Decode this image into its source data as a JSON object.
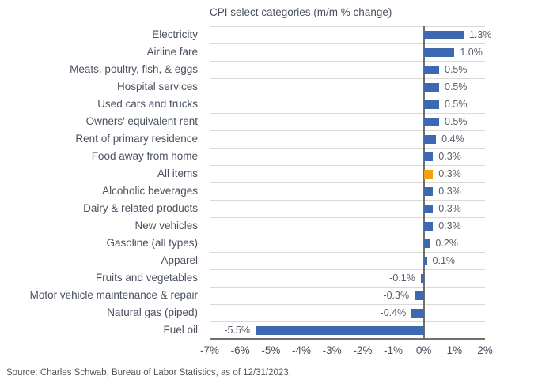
{
  "title": "CPI select categories (m/m % change)",
  "source": "Source: Charles Schwab, Bureau of Labor Statistics, as of 12/31/2023.",
  "colors": {
    "bar": "#3e69b1",
    "highlight_bar": "#f0a30c",
    "gridline": "#d9d9d9",
    "axis": "#707070",
    "title_text": "#4a5260",
    "label_text": "#4a5260",
    "value_text": "#57606c"
  },
  "chart_data": {
    "type": "bar",
    "orientation": "horizontal",
    "title": "CPI select categories (m/m % change)",
    "categories": [
      "Electricity",
      "Airline fare",
      "Meats, poultry, fish, & eggs",
      "Hospital services",
      "Used cars and trucks",
      "Owners' equivalent rent",
      "Rent of primary residence",
      "Food away from home",
      "All items",
      "Alcoholic beverages",
      "Dairy & related products",
      "New vehicles",
      "Gasoline (all types)",
      "Apparel",
      "Fruits and vegetables",
      "Motor vehicle maintenance & repair",
      "Natural gas (piped)",
      "Fuel oil"
    ],
    "values": [
      1.3,
      1.0,
      0.5,
      0.5,
      0.5,
      0.5,
      0.4,
      0.3,
      0.3,
      0.3,
      0.3,
      0.3,
      0.2,
      0.1,
      -0.1,
      -0.3,
      -0.4,
      -5.5
    ],
    "value_labels": [
      "1.3%",
      "1.0%",
      "0.5%",
      "0.5%",
      "0.5%",
      "0.5%",
      "0.4%",
      "0.3%",
      "0.3%",
      "0.3%",
      "0.3%",
      "0.3%",
      "0.2%",
      "0.1%",
      "-0.1%",
      "-0.3%",
      "-0.4%",
      "-5.5%"
    ],
    "highlight_category": "All items",
    "xlabel": "",
    "ylabel": "",
    "xlim": [
      -7,
      2
    ],
    "x_ticks": [
      "-7%",
      "-6%",
      "-5%",
      "-4%",
      "-3%",
      "-2%",
      "-1%",
      "0%",
      "1%",
      "2%"
    ],
    "grid": "horizontal-row-separators",
    "legend": "none"
  }
}
